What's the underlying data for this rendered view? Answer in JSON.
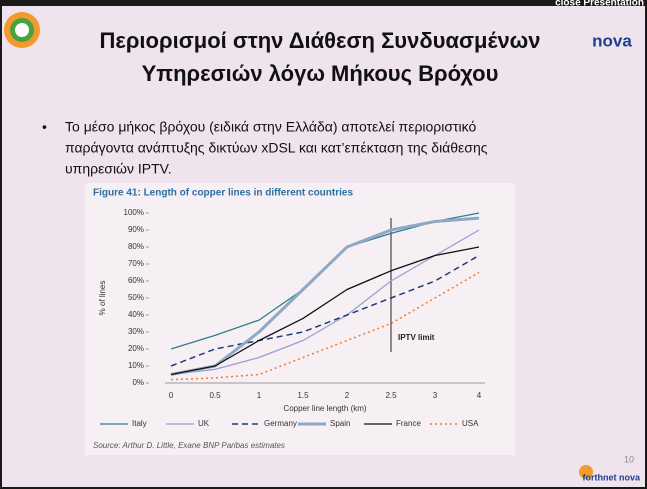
{
  "toolbar": {
    "close": "close Presentation"
  },
  "slide": {
    "title_lines": [
      "Περιορισμοί στην Διάθεση Συνδυασμένων",
      "Υπηρεσιών λόγω Μήκους Βρόχου"
    ],
    "bullet_lines": [
      "Το μέσο μήκος βρόχου (ειδικά στην Ελλάδα) αποτελεί  περιοριστικό",
      "παράγοντα ανάπτυξης δικτύων xDSL και κατ’επέκταση της διάθεσης",
      "υπηρεσιών IPTV."
    ],
    "logo": "nova",
    "footer_logo": "forthnet nova",
    "page_number": "10"
  },
  "chart_data": {
    "type": "line",
    "title": "Figure 41: Length of copper lines in different countries",
    "x_label": "Copper line length (km)",
    "y_label": "% of lines",
    "source": "Source: Arthur D. Little, Exane BNP Paribas estimates",
    "annotation": "IPTV limit",
    "annotation_category": 5,
    "categories": [
      "0",
      "0.5",
      "1",
      "1.5",
      "2",
      "2.5",
      "3",
      "4"
    ],
    "ylim": [
      0,
      100
    ],
    "yticks": [
      {
        "value": 0,
        "label": "0%"
      },
      {
        "value": 10,
        "label": "10%"
      },
      {
        "value": 20,
        "label": "20%"
      },
      {
        "value": 30,
        "label": "30%"
      },
      {
        "value": 40,
        "label": "40%"
      },
      {
        "value": 50,
        "label": "50%"
      },
      {
        "value": 60,
        "label": "60%"
      },
      {
        "value": 70,
        "label": "70%"
      },
      {
        "value": 80,
        "label": "80%"
      },
      {
        "value": 90,
        "label": "90%"
      },
      {
        "value": 100,
        "label": "100%"
      }
    ],
    "series": [
      {
        "name": "Italy",
        "color": "#2e7d8c",
        "width": 1.3,
        "dash": "none",
        "values": [
          20,
          28,
          37,
          55,
          80,
          88,
          95,
          100
        ]
      },
      {
        "name": "UK",
        "color": "#9a9fd0",
        "width": 1.3,
        "dash": "none",
        "values": [
          5,
          8,
          15,
          25,
          40,
          60,
          75,
          90
        ]
      },
      {
        "name": "Germany",
        "color": "#1f3a78",
        "width": 1.5,
        "dash": "6 4",
        "values": [
          10,
          20,
          25,
          30,
          40,
          50,
          60,
          75
        ]
      },
      {
        "name": "Spain",
        "color": "#8fa9c4",
        "width": 3,
        "dash": "none",
        "values": [
          5,
          10,
          30,
          55,
          80,
          90,
          95,
          97
        ]
      },
      {
        "name": "France",
        "color": "#111111",
        "width": 1.3,
        "dash": "none",
        "values": [
          5,
          10,
          25,
          38,
          55,
          66,
          75,
          80
        ]
      },
      {
        "name": "USA",
        "color": "#f07a2a",
        "width": 1.5,
        "dash": "2 3",
        "values": [
          2,
          3,
          5,
          15,
          25,
          35,
          50,
          65
        ]
      }
    ]
  }
}
